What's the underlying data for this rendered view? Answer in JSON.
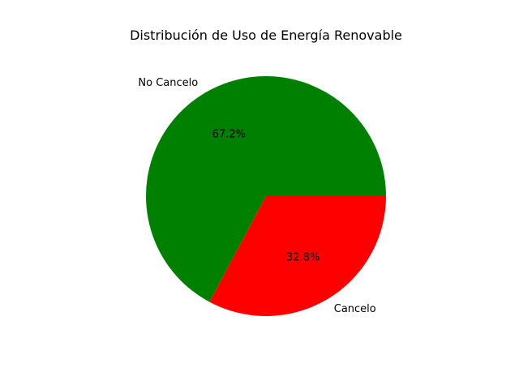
{
  "chart_data": {
    "type": "pie",
    "title": "Distribución de Uso de Energía Renovable",
    "slices": [
      {
        "label": "No Cancelo",
        "value": 67.2,
        "pct_label": "67.2%",
        "color": "#008000"
      },
      {
        "label": "Cancelo",
        "value": 32.8,
        "pct_label": "32.8%",
        "color": "#ff0000"
      }
    ],
    "start_angle_deg": 0,
    "direction": "counterclockwise"
  }
}
